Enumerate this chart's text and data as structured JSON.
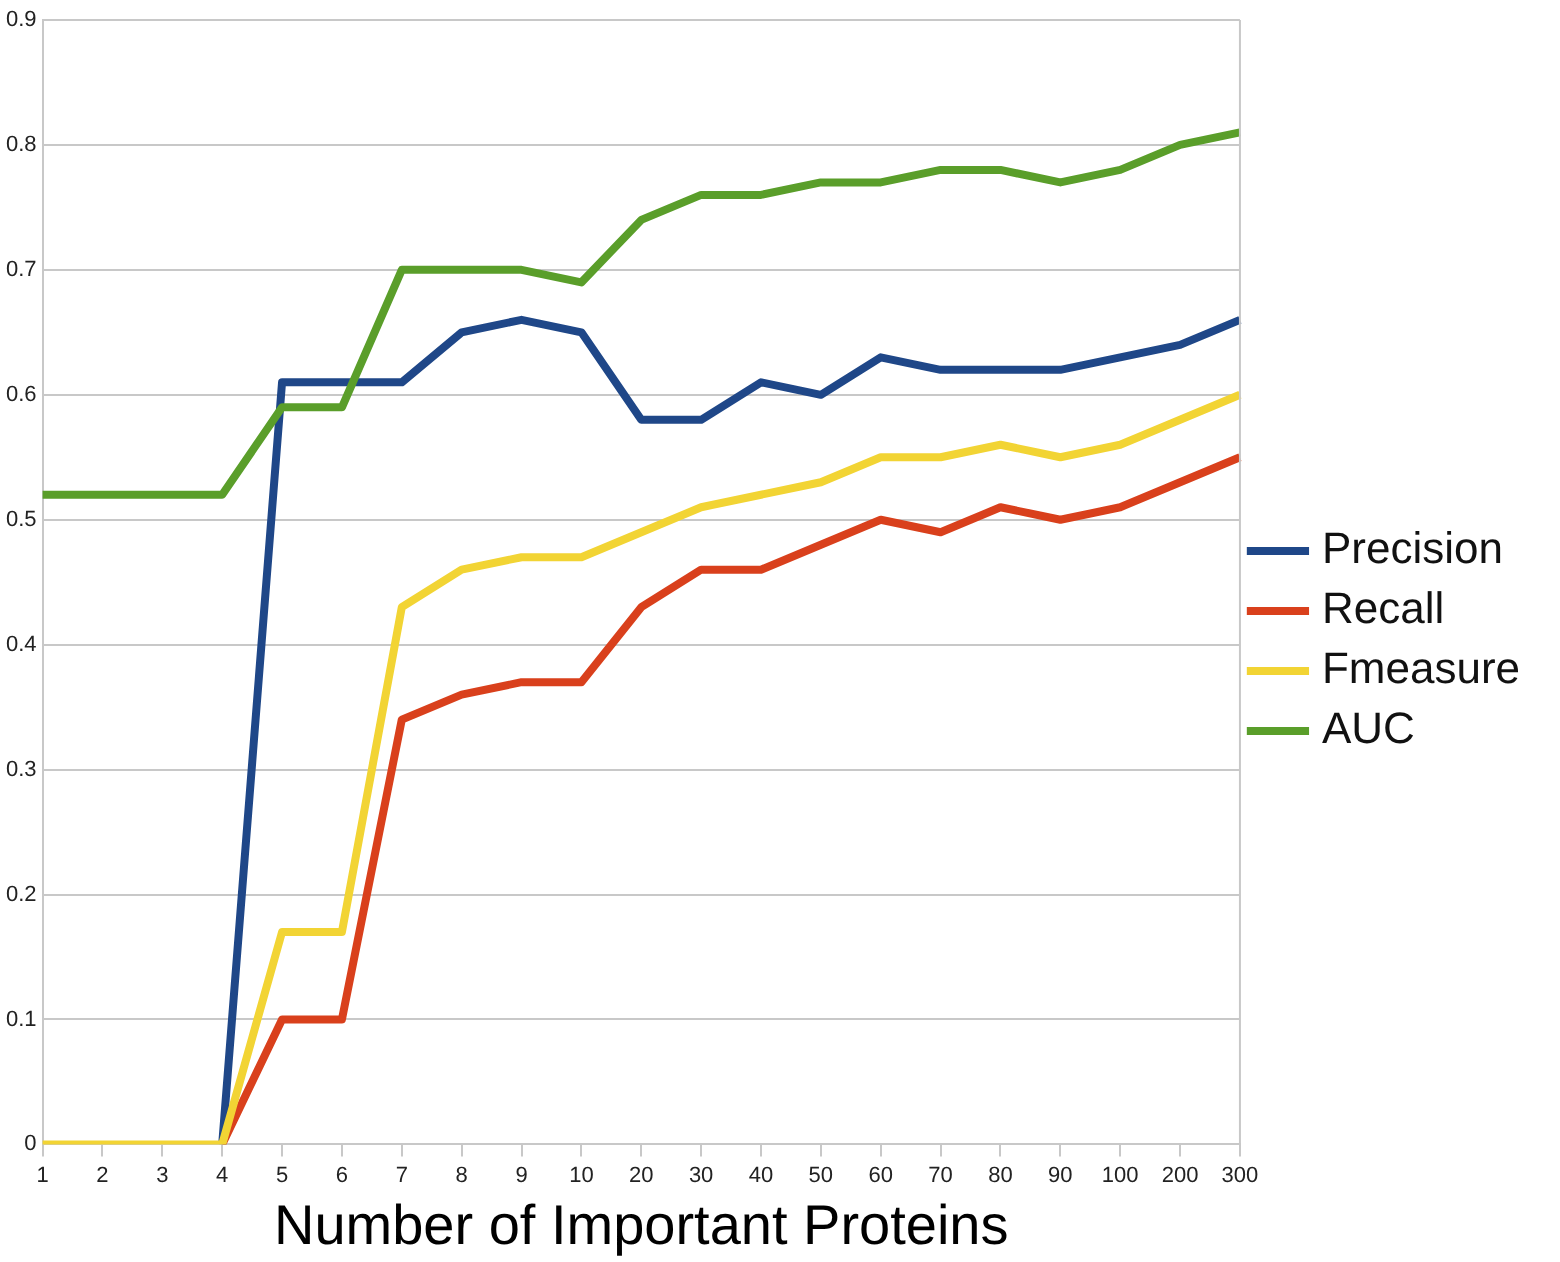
{
  "chart_data": {
    "type": "line",
    "xlabel": "Number of Important Proteins",
    "categories": [
      "1",
      "2",
      "3",
      "4",
      "5",
      "6",
      "7",
      "8",
      "9",
      "10",
      "20",
      "30",
      "40",
      "50",
      "60",
      "70",
      "80",
      "90",
      "100",
      "200",
      "300"
    ],
    "series": [
      {
        "name": "Precision",
        "color": "#1f4788",
        "values": [
          null,
          null,
          null,
          0,
          0.61,
          0.61,
          0.61,
          0.65,
          0.66,
          0.65,
          0.58,
          0.58,
          0.61,
          0.6,
          0.63,
          0.62,
          0.62,
          0.62,
          0.63,
          0.64,
          0.66
        ]
      },
      {
        "name": "Recall",
        "color": "#d9401c",
        "values": [
          null,
          null,
          null,
          0,
          0.1,
          0.1,
          0.34,
          0.36,
          0.37,
          0.37,
          0.43,
          0.46,
          0.46,
          0.48,
          0.5,
          0.49,
          0.51,
          0.5,
          0.51,
          0.53,
          0.55
        ]
      },
      {
        "name": "Fmeasure",
        "color": "#f2d434",
        "values": [
          0,
          0,
          0,
          0,
          0.17,
          0.17,
          0.43,
          0.46,
          0.47,
          0.47,
          0.49,
          0.51,
          0.52,
          0.53,
          0.55,
          0.55,
          0.56,
          0.55,
          0.56,
          0.58,
          0.6
        ]
      },
      {
        "name": "AUC",
        "color": "#5a9e2a",
        "values": [
          0.52,
          0.52,
          0.52,
          0.52,
          0.59,
          0.59,
          0.7,
          0.7,
          0.7,
          0.69,
          0.74,
          0.76,
          0.76,
          0.77,
          0.77,
          0.78,
          0.78,
          0.77,
          0.78,
          0.8,
          0.81
        ]
      }
    ],
    "ylim": [
      0,
      0.9
    ],
    "yticks": [
      0,
      0.1,
      0.2,
      0.3,
      0.4,
      0.5,
      0.6,
      0.7,
      0.8,
      0.9
    ],
    "grid": "y",
    "legend": "right",
    "marker": "none",
    "line_style": "solid"
  }
}
